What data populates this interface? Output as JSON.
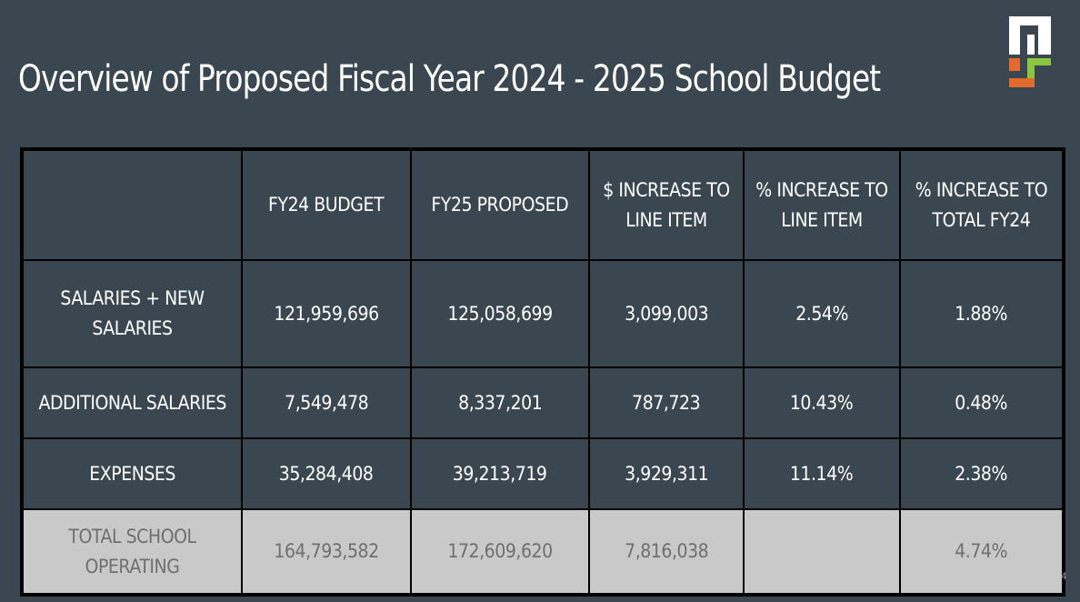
{
  "slide": {
    "title": "Overview of Proposed Fiscal Year 2024 - 2025 School Budget",
    "page_number": "4",
    "logo_colors": {
      "white": "#ffffff",
      "orange": "#e26a2c",
      "green": "#8ac640"
    },
    "background_color": "#3a4750",
    "total_row_color": "#c9c9c9"
  },
  "table": {
    "headers": [
      "",
      "FY24 BUDGET",
      "FY25 PROPOSED",
      "$ INCREASE TO LINE ITEM",
      "% INCREASE TO LINE ITEM",
      "% INCREASE TO TOTAL FY24"
    ],
    "rows": [
      [
        "SALARIES + NEW SALARIES",
        "121,959,696",
        "125,058,699",
        "3,099,003",
        "2.54%",
        "1.88%"
      ],
      [
        "ADDITIONAL SALARIES",
        "7,549,478",
        "8,337,201",
        "787,723",
        "10.43%",
        "0.48%"
      ],
      [
        "EXPENSES",
        "35,284,408",
        "39,213,719",
        "3,929,311",
        "11.14%",
        "2.38%"
      ],
      [
        "TOTAL SCHOOL OPERATING",
        "164,793,582",
        "172,609,620",
        "7,816,038",
        "",
        "4.74%"
      ]
    ]
  }
}
